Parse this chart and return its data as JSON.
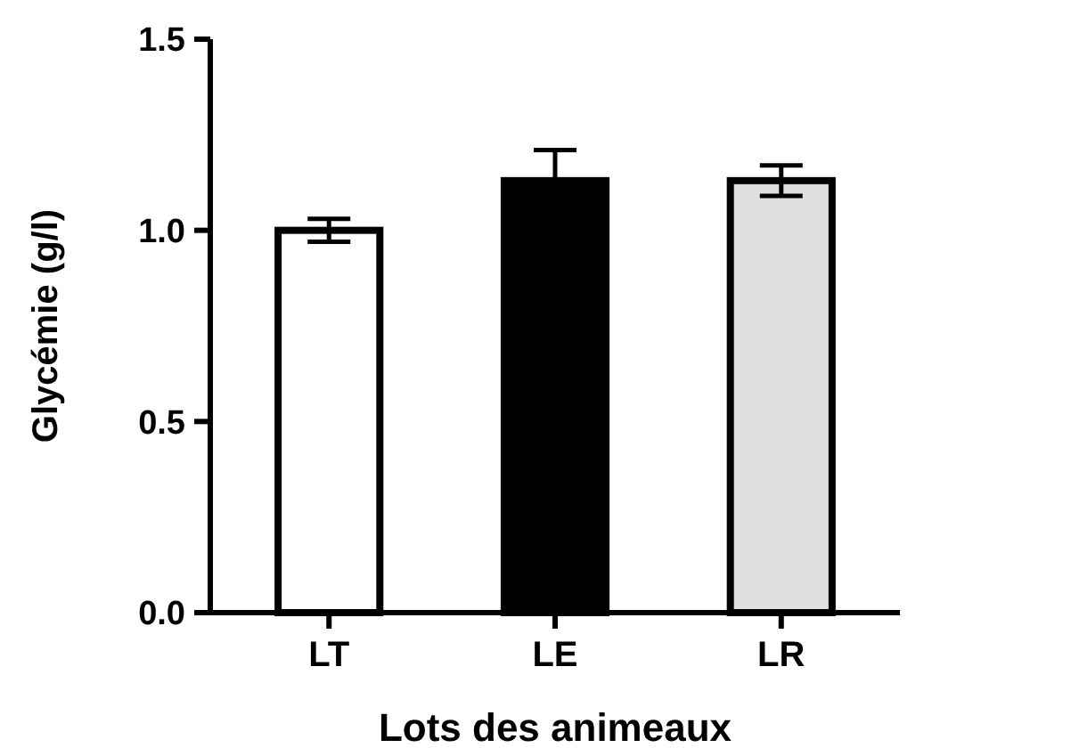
{
  "chart_data": {
    "type": "bar",
    "xlabel": "Lots des animeaux",
    "ylabel": "Glycémie (g/l)",
    "categories": [
      "LT",
      "LE",
      "LR"
    ],
    "values": [
      1.0,
      1.13,
      1.13
    ],
    "colors": [
      "#ffffff",
      "#000000",
      "#e0e0e0"
    ],
    "errors": [
      0.03,
      0.08,
      0.04
    ],
    "ylim": [
      0,
      1.5
    ],
    "yticks": [
      {
        "value": 0,
        "label": "0.0"
      },
      {
        "value": 0.5,
        "label": "0.5"
      },
      {
        "value": 1,
        "label": "1.0"
      },
      {
        "value": 1.5,
        "label": "1.5"
      }
    ],
    "grid": false
  }
}
